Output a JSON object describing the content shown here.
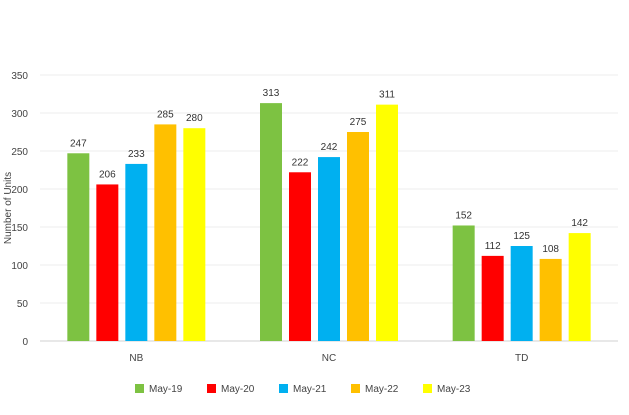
{
  "chart_data": {
    "type": "bar",
    "title": "",
    "xlabel": "",
    "ylabel": "Number of Units",
    "categories": [
      "NB",
      "NC",
      "TD"
    ],
    "series": [
      {
        "name": "May-19",
        "values": [
          247,
          313,
          152
        ],
        "color": "#7DC242"
      },
      {
        "name": "May-20",
        "values": [
          206,
          222,
          112
        ],
        "color": "#FF0000"
      },
      {
        "name": "May-21",
        "values": [
          233,
          242,
          125
        ],
        "color": "#00B0F0"
      },
      {
        "name": "May-22",
        "values": [
          285,
          275,
          108
        ],
        "color": "#FFC000"
      },
      {
        "name": "May-23",
        "values": [
          280,
          311,
          142
        ],
        "color": "#FFFF00"
      }
    ],
    "ylim": [
      0,
      350
    ],
    "yticks": [
      0,
      50,
      100,
      150,
      200,
      250,
      300,
      350
    ],
    "grid": true,
    "legend": "bottom",
    "data_labels": true
  }
}
